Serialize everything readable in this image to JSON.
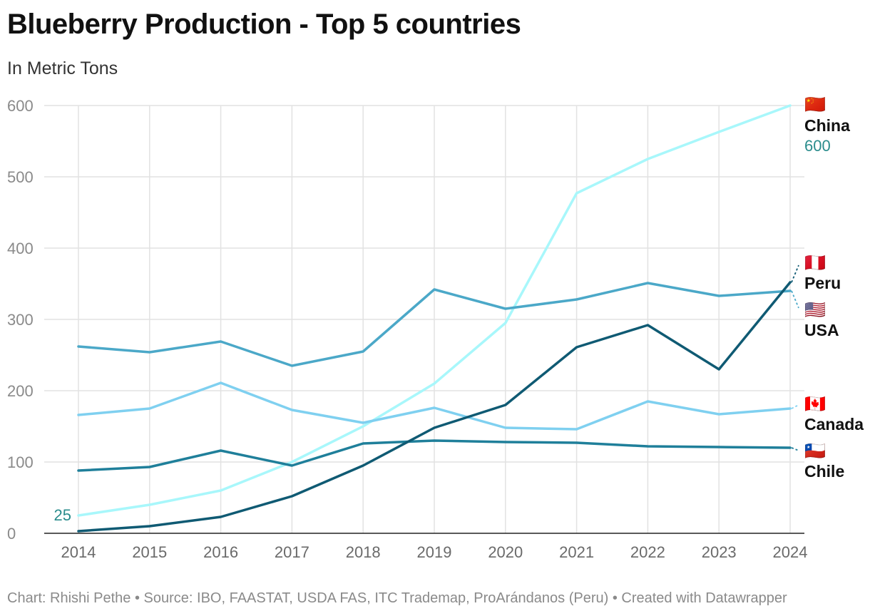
{
  "chart_data": {
    "type": "line",
    "title": "Blueberry Production - Top 5 countries",
    "subtitle": "In Metric Tons",
    "xlabel": "",
    "ylabel": "",
    "x": [
      "2014",
      "2015",
      "2016",
      "2017",
      "2018",
      "2019",
      "2020",
      "2021",
      "2022",
      "2023",
      "2024"
    ],
    "ylim": [
      0,
      600
    ],
    "yticks": [
      "0",
      "100",
      "200",
      "300",
      "400",
      "500",
      "600"
    ],
    "series": [
      {
        "name": "China",
        "flag": "🇨🇳",
        "color": "#a8f7fb",
        "label_color": "#2a8c8c",
        "values": [
          25,
          40,
          60,
          100,
          150,
          210,
          295,
          477,
          525,
          563,
          600
        ]
      },
      {
        "name": "Peru",
        "flag": "🇵🇪",
        "color": "#0f5a73",
        "label_color": "#111111",
        "values": [
          3,
          10,
          23,
          52,
          95,
          148,
          180,
          261,
          292,
          230,
          352
        ]
      },
      {
        "name": "USA",
        "flag": "🇺🇸",
        "color": "#4ba8c8",
        "label_color": "#111111",
        "values": [
          262,
          254,
          269,
          235,
          255,
          342,
          315,
          328,
          351,
          333,
          340
        ]
      },
      {
        "name": "Canada",
        "flag": "🇨🇦",
        "color": "#7fd0f0",
        "label_color": "#111111",
        "values": [
          166,
          175,
          211,
          173,
          155,
          176,
          148,
          146,
          185,
          167,
          175
        ]
      },
      {
        "name": "Chile",
        "flag": "🇨🇱",
        "color": "#1f7f9a",
        "label_color": "#111111",
        "values": [
          88,
          93,
          116,
          95,
          126,
          130,
          128,
          127,
          122,
          121,
          120
        ]
      }
    ],
    "annotations": [
      {
        "series": "China",
        "text": "25",
        "at": "2014"
      },
      {
        "series": "China",
        "text": "600",
        "at": "2024"
      }
    ],
    "grid": true,
    "legend": "direct labels at right end of lines"
  },
  "footer": "Chart: Rhishi Pethe • Source: IBO, FAASTAT, USDA FAS, ITC Trademap, ProArándanos (Peru) • Created with Datawrapper"
}
